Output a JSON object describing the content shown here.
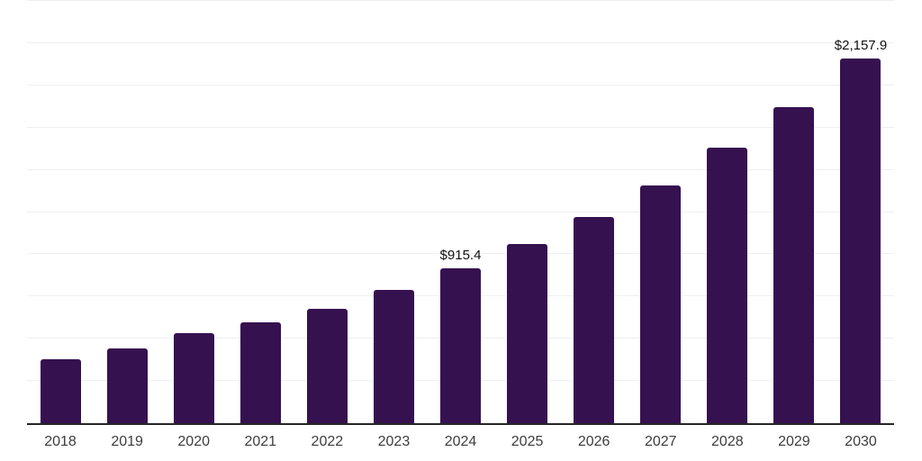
{
  "chart_data": {
    "type": "bar",
    "title": "",
    "xlabel": "",
    "ylabel": "",
    "categories": [
      "2018",
      "2019",
      "2020",
      "2021",
      "2022",
      "2023",
      "2024",
      "2025",
      "2026",
      "2027",
      "2028",
      "2029",
      "2030"
    ],
    "values": [
      377,
      440,
      532,
      599,
      679,
      788,
      915.4,
      1059,
      1222,
      1409,
      1630,
      1873,
      2157.9
    ],
    "point_labels": {
      "2024": "$915.4",
      "2030": "$2,157.9"
    },
    "ylim": [
      0,
      2500
    ],
    "gridline_step": 250,
    "grid": true,
    "legend": false,
    "y_tick_labels_visible": false,
    "colors": {
      "bar": "#361150",
      "axis_line": "#262626",
      "gridline": "#efefef",
      "tick_label": "#3d3d3d",
      "point_label": "#111111",
      "background": "#ffffff"
    }
  }
}
